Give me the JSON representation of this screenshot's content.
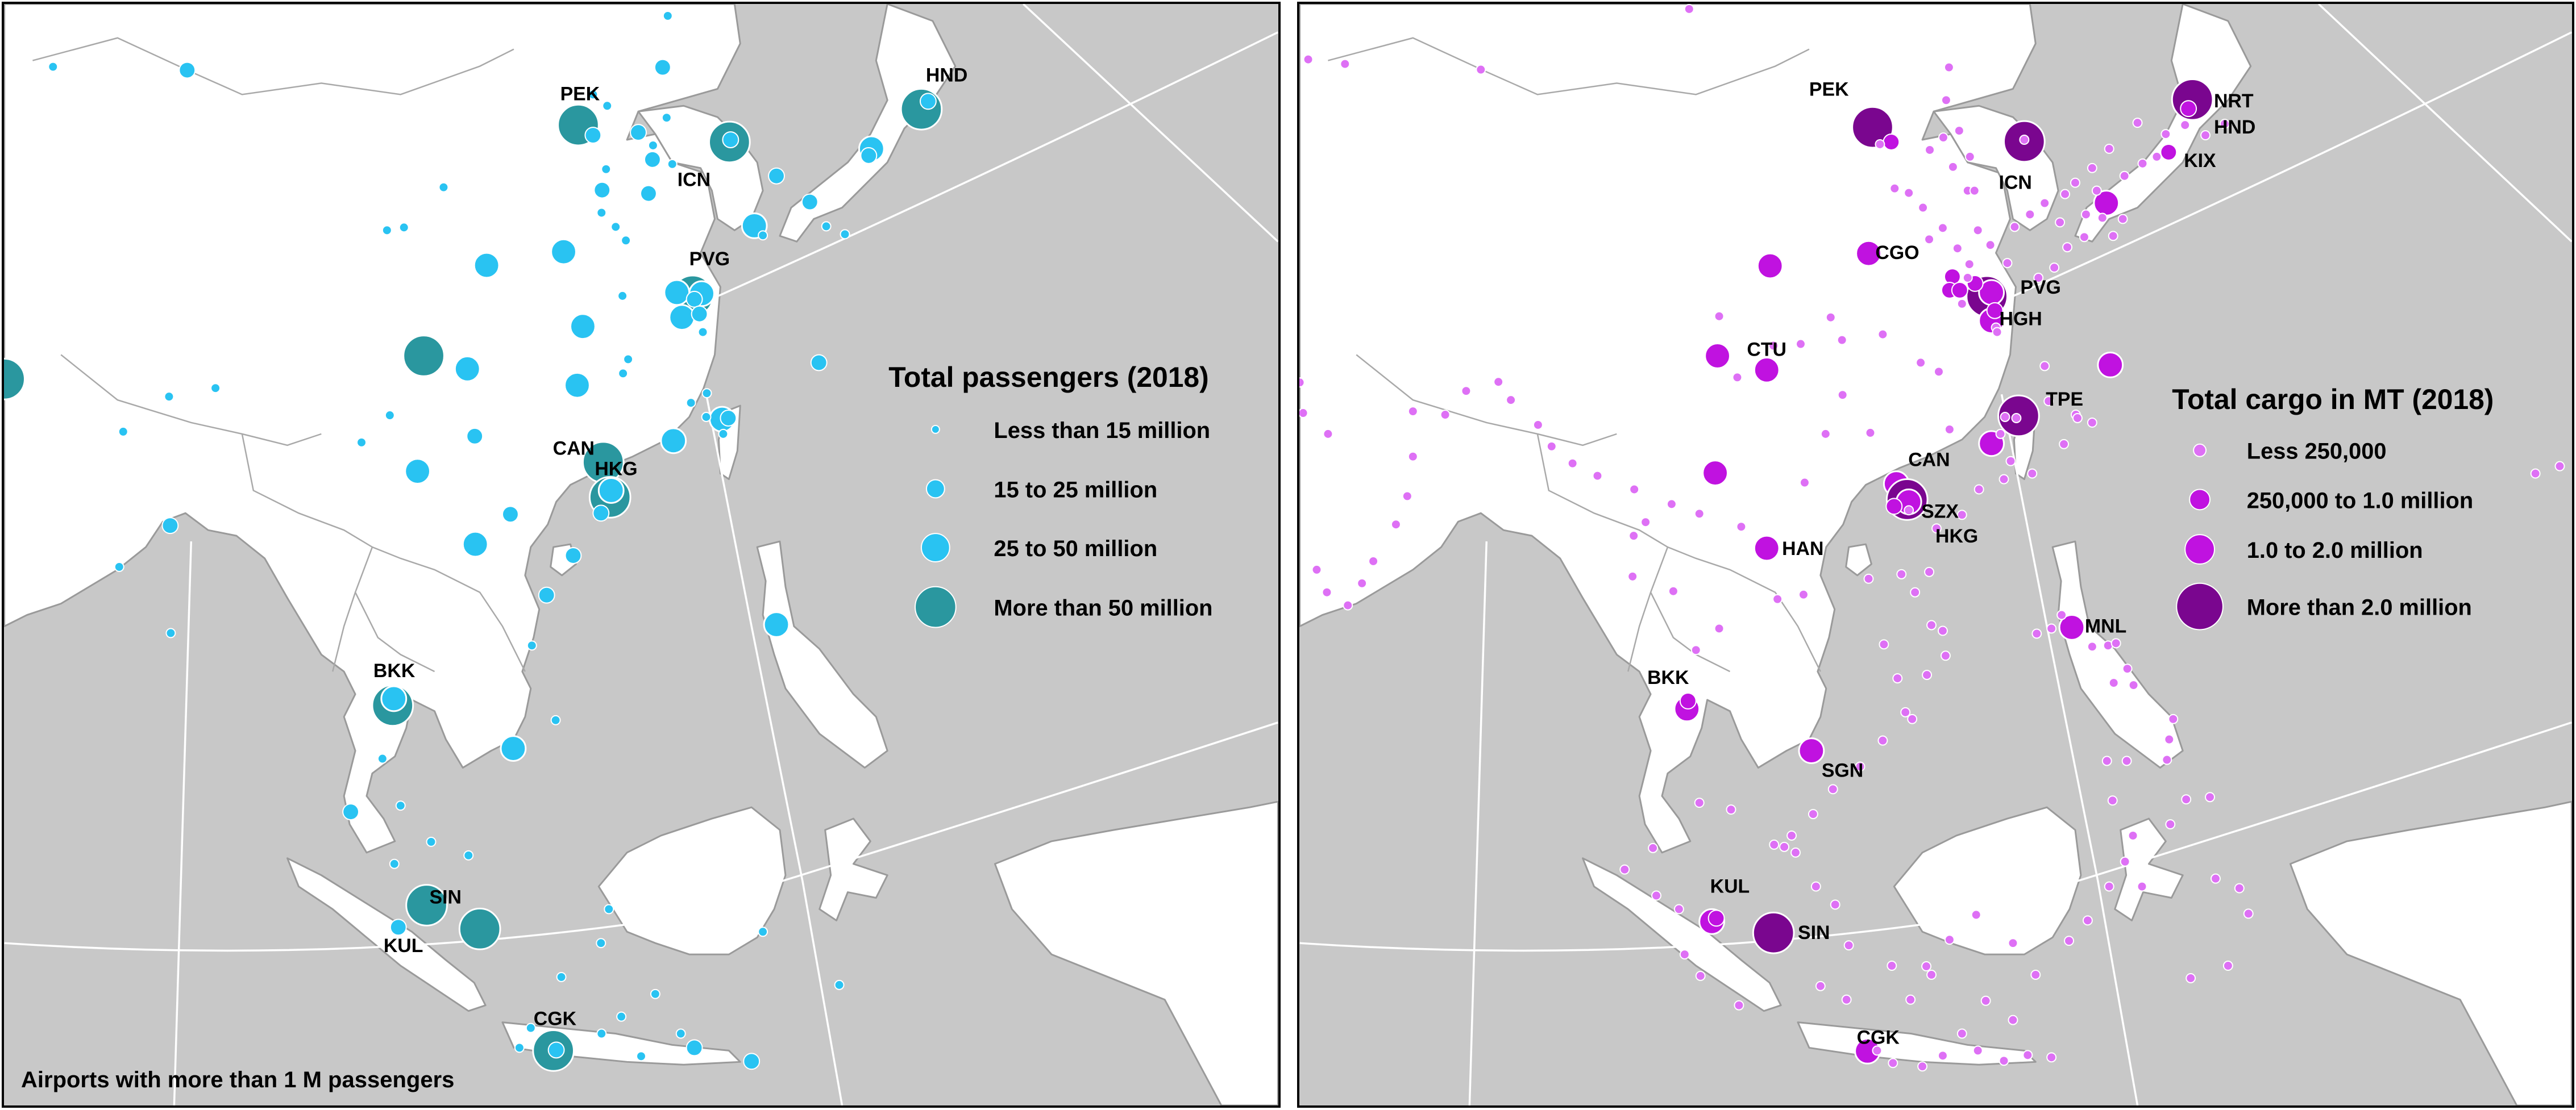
{
  "colors": {
    "water": "#c8c8c8",
    "land": "#ffffff",
    "passengers_small": "#29c3f2",
    "passengers_large": "#2a979f",
    "cargo_small": "#de70f5",
    "cargo_mid": "#c012e0",
    "cargo_large": "#7a068f"
  },
  "passengers_map": {
    "legend_title": "Total passengers (2018)",
    "legend": [
      {
        "label": "Less than 15 million",
        "tier": 1
      },
      {
        "label": "15 to 25 million",
        "tier": 2
      },
      {
        "label": "25 to 50 million",
        "tier": 3
      },
      {
        "label": "More than 50 million",
        "tier": 4
      }
    ],
    "footnote": "Airports with more than 1 M passengers",
    "labels": [
      "PEK",
      "HND",
      "ICN",
      "PVG",
      "CAN",
      "HKG",
      "BKK",
      "SIN",
      "KUL",
      "CGK"
    ]
  },
  "cargo_map": {
    "legend_title": "Total cargo in MT (2018)",
    "legend": [
      {
        "label": "Less 250,000",
        "tier": 1
      },
      {
        "label": "250,000 to 1.0 million",
        "tier": 2
      },
      {
        "label": "1.0 to 2.0 million",
        "tier": 3
      },
      {
        "label": "More than 2.0 million",
        "tier": 4
      }
    ],
    "labels": [
      "PEK",
      "NRT",
      "HND",
      "KIX",
      "ICN",
      "CGO",
      "PVG",
      "HGH",
      "CTU",
      "TPE",
      "CAN",
      "SZX",
      "HKG",
      "HAN",
      "MNL",
      "BKK",
      "SGN",
      "KUL",
      "SIN",
      "CGK"
    ]
  }
}
